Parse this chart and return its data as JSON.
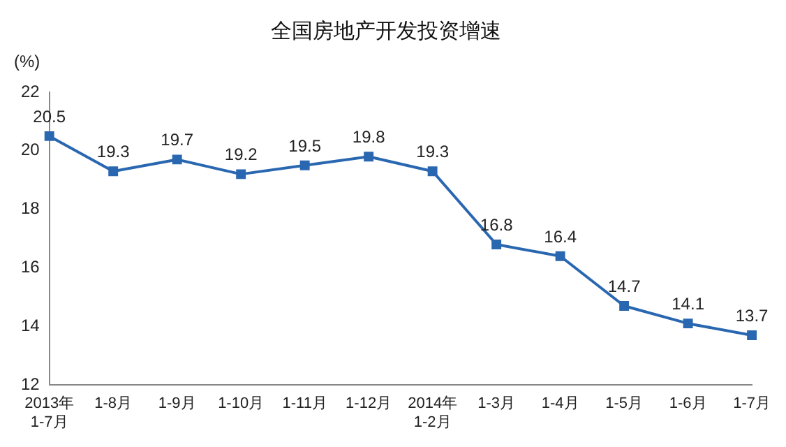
{
  "chart_data": {
    "type": "line",
    "title": "全国房地产开发投资增速",
    "ylabel": "(%)",
    "categories": [
      "2013年\n1-7月",
      "1-8月",
      "1-9月",
      "1-10月",
      "1-11月",
      "1-12月",
      "2014年\n1-2月",
      "1-3月",
      "1-4月",
      "1-5月",
      "1-6月",
      "1-7月"
    ],
    "series": [
      {
        "color": "#2a67b1",
        "values": [
          20.5,
          19.3,
          19.7,
          19.2,
          19.5,
          19.8,
          19.3,
          16.8,
          16.4,
          14.7,
          14.1,
          13.7
        ]
      }
    ],
    "ylim": [
      12,
      22
    ],
    "yticks": [
      12,
      14,
      16,
      18,
      20,
      22
    ],
    "grid": false,
    "legend": false,
    "marker": "square",
    "line_style": "solid",
    "data_labels": true
  }
}
